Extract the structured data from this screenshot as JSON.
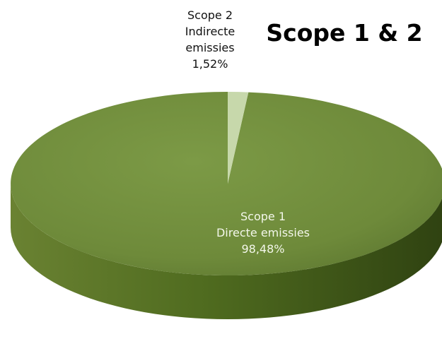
{
  "chart_data": {
    "type": "pie",
    "title": "Scope 1 & 2",
    "slices": [
      {
        "label_lines": [
          "Scope 1",
          "Directe emissies",
          "98,48%"
        ],
        "value": 98.48,
        "color": "#6e8a3a"
      },
      {
        "label_lines": [
          "Scope 2",
          "Indirecte",
          "emissies",
          "1,52%"
        ],
        "value": 1.52,
        "color": "#c7d8ab"
      }
    ],
    "start_angle": "12 o'clock",
    "style": "3d"
  }
}
